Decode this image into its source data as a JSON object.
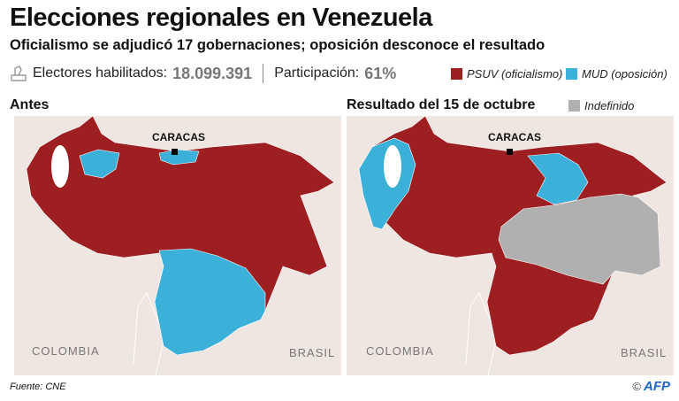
{
  "title": "Elecciones regionales en Venezuela",
  "subtitle": "Oficialismo se adjudicó 17 gobernaciones; oposición desconoce el resultado",
  "stats": {
    "voters_label": "Electores habilitados:",
    "voters_value": "18.099.391",
    "turnout_label": "Participación:",
    "turnout_value": "61%",
    "icon": "ballot-box-icon"
  },
  "legend": [
    {
      "label": "PSUV (oficialismo)",
      "color": "#9e1f22"
    },
    {
      "label": "MUD (oposición)",
      "color": "#3bb0d9"
    },
    {
      "label": "Indefinido",
      "color": "#b0b0b0"
    }
  ],
  "maps": [
    {
      "title": "Antes",
      "capital": "CARACAS",
      "neighbors": [
        "COLOMBIA",
        "BRASIL"
      ]
    },
    {
      "title": "Resultado del 15 de octubre",
      "capital": "CARACAS",
      "neighbors": [
        "COLOMBIA",
        "BRASIL"
      ]
    }
  ],
  "source": "Fuente: CNE",
  "credit": {
    "copyright": "©",
    "logo": "AFP"
  }
}
